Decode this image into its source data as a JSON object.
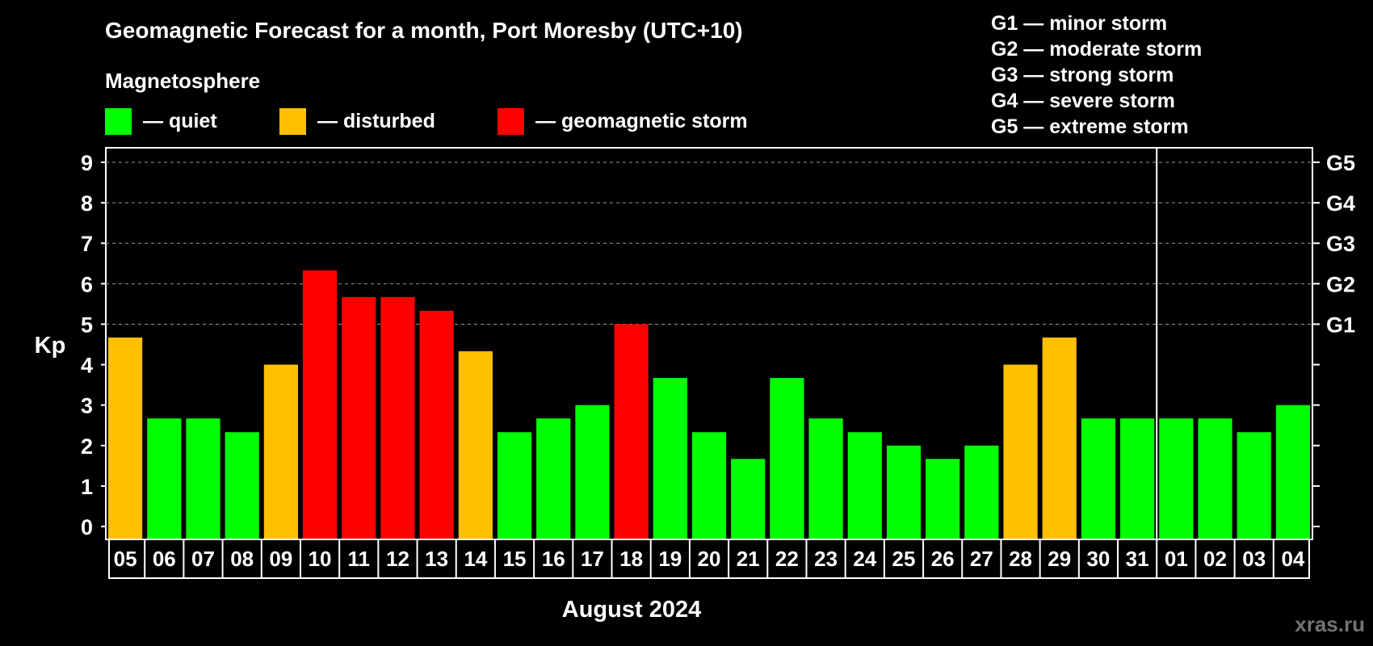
{
  "chart_data": {
    "type": "bar",
    "title": "Geomagnetic Forecast for a month, Port Moresby (UTC+10)",
    "legend_heading": "Magnetosphere",
    "legend": [
      {
        "label": "— quiet",
        "color": "#00ff00"
      },
      {
        "label": "— disturbed",
        "color": "#ffc000"
      },
      {
        "label": "— geomagnetic storm",
        "color": "#ff0000"
      }
    ],
    "storm_scale": [
      "G1 — minor storm",
      "G2 — moderate storm",
      "G3 — strong storm",
      "G4 — severe storm",
      "G5 — extreme storm"
    ],
    "ylabel": "Kp",
    "xlabel": "August 2024",
    "ylim": [
      0,
      9
    ],
    "y_ticks": [
      "0",
      "1",
      "2",
      "3",
      "4",
      "5",
      "6",
      "7",
      "8",
      "9"
    ],
    "g_levels": [
      {
        "label": "G1",
        "kp": 5
      },
      {
        "label": "G2",
        "kp": 6
      },
      {
        "label": "G3",
        "kp": 7
      },
      {
        "label": "G4",
        "kp": 8
      },
      {
        "label": "G5",
        "kp": 9
      }
    ],
    "month_divider_after_index": 26,
    "categories": [
      "05",
      "06",
      "07",
      "08",
      "09",
      "10",
      "11",
      "12",
      "13",
      "14",
      "15",
      "16",
      "17",
      "18",
      "19",
      "20",
      "21",
      "22",
      "23",
      "24",
      "25",
      "26",
      "27",
      "28",
      "29",
      "30",
      "31",
      "01",
      "02",
      "03",
      "04"
    ],
    "values": [
      4.67,
      2.67,
      2.67,
      2.33,
      4.0,
      6.33,
      5.67,
      5.67,
      5.33,
      4.33,
      2.33,
      2.67,
      3.0,
      5.0,
      3.67,
      2.33,
      1.67,
      3.67,
      2.67,
      2.33,
      2.0,
      1.67,
      2.0,
      4.0,
      4.67,
      2.67,
      2.67,
      2.67,
      2.67,
      2.33,
      3.0
    ],
    "status": [
      "disturbed",
      "quiet",
      "quiet",
      "quiet",
      "disturbed",
      "storm",
      "storm",
      "storm",
      "storm",
      "disturbed",
      "quiet",
      "quiet",
      "quiet",
      "storm",
      "quiet",
      "quiet",
      "quiet",
      "quiet",
      "quiet",
      "quiet",
      "quiet",
      "quiet",
      "quiet",
      "disturbed",
      "disturbed",
      "quiet",
      "quiet",
      "quiet",
      "quiet",
      "quiet",
      "quiet"
    ],
    "status_colors": {
      "quiet": "#00ff00",
      "disturbed": "#ffc000",
      "storm": "#ff0000"
    }
  },
  "watermark": "xras.ru"
}
